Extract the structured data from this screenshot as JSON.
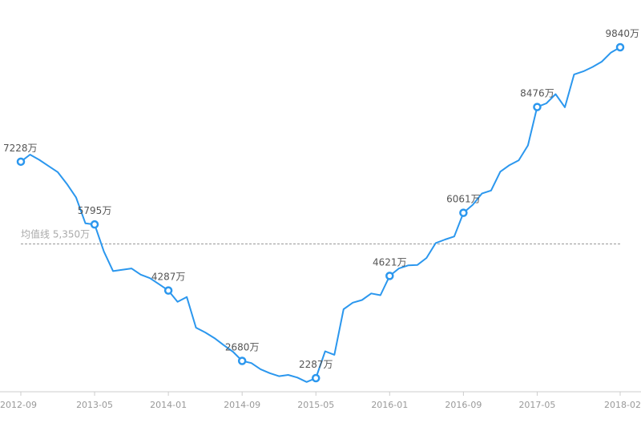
{
  "chart_data": {
    "type": "line",
    "title": "",
    "xlabel": "",
    "ylabel": "",
    "colors": {
      "line": "#2b97ee",
      "axis": "#cccccc",
      "mean_line": "#999999",
      "point_fill": "#ffffff"
    },
    "grid": false,
    "x_ticks": [
      "2012-09",
      "2013-05",
      "2014-01",
      "2014-09",
      "2015-05",
      "2016-01",
      "2016-09",
      "2017-05",
      "2018-02"
    ],
    "mean": {
      "label": "均值线 5,350万",
      "value": 5350
    },
    "series": [
      {
        "values": [
          {
            "x": "2012-09",
            "y": 7228,
            "label": "7228万"
          },
          {
            "x": "2012-10",
            "y": 7390
          },
          {
            "x": "2012-11",
            "y": 7270
          },
          {
            "x": "2012-12",
            "y": 7130
          },
          {
            "x": "2013-01",
            "y": 6990
          },
          {
            "x": "2013-02",
            "y": 6720
          },
          {
            "x": "2013-03",
            "y": 6410
          },
          {
            "x": "2013-04",
            "y": 5820
          },
          {
            "x": "2013-05",
            "y": 5795,
            "label": "5795万"
          },
          {
            "x": "2013-06",
            "y": 5180
          },
          {
            "x": "2013-07",
            "y": 4730
          },
          {
            "x": "2013-08",
            "y": 4760
          },
          {
            "x": "2013-09",
            "y": 4790
          },
          {
            "x": "2013-10",
            "y": 4650
          },
          {
            "x": "2013-11",
            "y": 4570
          },
          {
            "x": "2013-12",
            "y": 4430
          },
          {
            "x": "2014-01",
            "y": 4287,
            "label": "4287万"
          },
          {
            "x": "2014-02",
            "y": 4030
          },
          {
            "x": "2014-03",
            "y": 4140
          },
          {
            "x": "2014-04",
            "y": 3440
          },
          {
            "x": "2014-05",
            "y": 3330
          },
          {
            "x": "2014-06",
            "y": 3200
          },
          {
            "x": "2014-07",
            "y": 3040
          },
          {
            "x": "2014-08",
            "y": 2890
          },
          {
            "x": "2014-09",
            "y": 2680,
            "label": "2680万"
          },
          {
            "x": "2014-10",
            "y": 2630
          },
          {
            "x": "2014-11",
            "y": 2490
          },
          {
            "x": "2014-12",
            "y": 2400
          },
          {
            "x": "2015-01",
            "y": 2330
          },
          {
            "x": "2015-02",
            "y": 2360
          },
          {
            "x": "2015-03",
            "y": 2300
          },
          {
            "x": "2015-04",
            "y": 2200
          },
          {
            "x": "2015-05",
            "y": 2287,
            "label": "2287万"
          },
          {
            "x": "2015-06",
            "y": 2900
          },
          {
            "x": "2015-07",
            "y": 2820
          },
          {
            "x": "2015-08",
            "y": 3860
          },
          {
            "x": "2015-09",
            "y": 4010
          },
          {
            "x": "2015-10",
            "y": 4070
          },
          {
            "x": "2015-11",
            "y": 4220
          },
          {
            "x": "2015-12",
            "y": 4180
          },
          {
            "x": "2016-01",
            "y": 4621,
            "label": "4621万"
          },
          {
            "x": "2016-02",
            "y": 4790
          },
          {
            "x": "2016-03",
            "y": 4860
          },
          {
            "x": "2016-04",
            "y": 4870
          },
          {
            "x": "2016-05",
            "y": 5030
          },
          {
            "x": "2016-06",
            "y": 5370
          },
          {
            "x": "2016-07",
            "y": 5450
          },
          {
            "x": "2016-08",
            "y": 5520
          },
          {
            "x": "2016-09",
            "y": 6061,
            "label": "6061万"
          },
          {
            "x": "2016-10",
            "y": 6240
          },
          {
            "x": "2016-11",
            "y": 6500
          },
          {
            "x": "2016-12",
            "y": 6570
          },
          {
            "x": "2017-01",
            "y": 7000
          },
          {
            "x": "2017-02",
            "y": 7150
          },
          {
            "x": "2017-03",
            "y": 7260
          },
          {
            "x": "2017-04",
            "y": 7600
          },
          {
            "x": "2017-05",
            "y": 8476,
            "label": "8476万"
          },
          {
            "x": "2017-06",
            "y": 8560
          },
          {
            "x": "2017-07",
            "y": 8770
          },
          {
            "x": "2017-08",
            "y": 8470
          },
          {
            "x": "2017-09",
            "y": 9220
          },
          {
            "x": "2017-10",
            "y": 9290
          },
          {
            "x": "2017-11",
            "y": 9390
          },
          {
            "x": "2017-12",
            "y": 9510
          },
          {
            "x": "2018-01",
            "y": 9720
          },
          {
            "x": "2018-02",
            "y": 9840,
            "label": "9840万"
          }
        ]
      }
    ]
  }
}
